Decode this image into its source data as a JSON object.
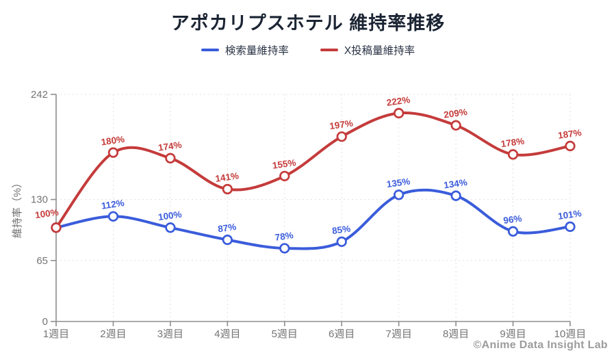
{
  "title": "アポカリプスホテル 維持率推移",
  "footer": "©Anime Data Insight Lab",
  "chart_data": {
    "type": "line",
    "title": "アポカリプスホテル 維持率推移",
    "x_categories": [
      "1週目",
      "2週目",
      "3週目",
      "4週目",
      "5週目",
      "6週目",
      "7週目",
      "8週目",
      "9週目",
      "10週目"
    ],
    "ylabel": "維持率（%）",
    "y_ticks": [
      0,
      65,
      130,
      242
    ],
    "ylim": [
      0,
      242
    ],
    "grid": true,
    "legend_position": "top",
    "curve": "smooth",
    "series": [
      {
        "name": "検索量維持率",
        "color": "#3a5cdb",
        "values": [
          100,
          112,
          100,
          87,
          78,
          85,
          135,
          134,
          96,
          101
        ],
        "data_labels": [
          null,
          "112%",
          "100%",
          "87%",
          "78%",
          "85%",
          "135%",
          "134%",
          "96%",
          "101%"
        ]
      },
      {
        "name": "X投稿量維持率",
        "color": "#c53b3b",
        "values": [
          100,
          180,
          174,
          141,
          155,
          197,
          222,
          209,
          178,
          187
        ],
        "data_labels": [
          "100%",
          "180%",
          "174%",
          "141%",
          "155%",
          "197%",
          "222%",
          "209%",
          "178%",
          "187%"
        ]
      }
    ]
  }
}
